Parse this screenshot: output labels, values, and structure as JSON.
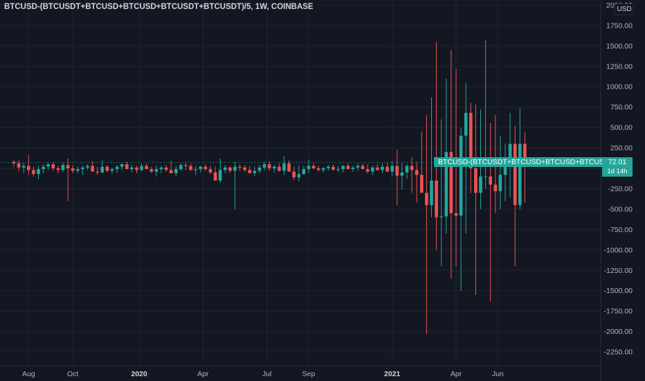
{
  "header": {
    "title": "BTCUSD-(BTCUSDT+BTCUSD+BTCUSD+BTCUSDT+BTCUSDT)/5, 1W, COINBASE",
    "currency": "USD"
  },
  "last_price": {
    "series_label": "BTCUSD-(BTCUSDT+BTCUSD+BTCUSD+BTCUSDT...",
    "value": "72.01",
    "countdown": "1d 14h"
  },
  "colors": {
    "background": "#131722",
    "grid": "#1f2430",
    "up": "#26a69a",
    "down": "#ef5350",
    "text": "#b2b5be"
  },
  "chart_data": {
    "type": "candlestick",
    "interval": "1W",
    "y_axis": {
      "range": [
        -2350,
        2050
      ],
      "ticks": [
        2000,
        1750,
        1500,
        1250,
        1000,
        750,
        500,
        250,
        0,
        -250,
        -500,
        -750,
        -1000,
        -1250,
        -1500,
        -1750,
        -2000,
        -2250
      ],
      "tick_labels": [
        "2000.00",
        "1750.00",
        "1500.00",
        "1250.00",
        "1000.00",
        "750.00",
        "500.00",
        "250.00",
        "0.00",
        "-250.00",
        "-500.00",
        "-750.00",
        "-1000.00",
        "-1250.00",
        "-1500.00",
        "-1750.00",
        "-2000.00",
        "-2250.00"
      ]
    },
    "x_axis": {
      "ticks": [
        {
          "label": "Aug",
          "bar": 3.0,
          "bold": false
        },
        {
          "label": "Oct",
          "bar": 12.0,
          "bold": false
        },
        {
          "label": "2020",
          "bar": 25.5,
          "bold": true
        },
        {
          "label": "Apr",
          "bar": 38.5,
          "bold": false
        },
        {
          "label": "Jul",
          "bar": 51.5,
          "bold": false
        },
        {
          "label": "Sep",
          "bar": 60.0,
          "bold": false
        },
        {
          "label": "2021",
          "bar": 77.0,
          "bold": true
        },
        {
          "label": "Apr",
          "bar": 90.0,
          "bold": false
        },
        {
          "label": "Jun",
          "bar": 98.5,
          "bold": false
        }
      ]
    },
    "last_value": 72.01,
    "candles": [
      {
        "o": 80,
        "h": 100,
        "l": 20,
        "c": 60
      },
      {
        "o": 60,
        "h": 100,
        "l": -40,
        "c": 10
      },
      {
        "o": 10,
        "h": 70,
        "l": -60,
        "c": 30
      },
      {
        "o": 30,
        "h": 160,
        "l": -80,
        "c": -20
      },
      {
        "o": -20,
        "h": 20,
        "l": -100,
        "c": -70
      },
      {
        "o": -70,
        "h": 30,
        "l": -130,
        "c": -10
      },
      {
        "o": -10,
        "h": 50,
        "l": -60,
        "c": 20
      },
      {
        "o": 20,
        "h": 70,
        "l": -20,
        "c": 50
      },
      {
        "o": 50,
        "h": 80,
        "l": -30,
        "c": 0
      },
      {
        "o": 0,
        "h": 30,
        "l": -60,
        "c": -20
      },
      {
        "o": -20,
        "h": 70,
        "l": -40,
        "c": 40
      },
      {
        "o": 40,
        "h": 120,
        "l": -400,
        "c": 0
      },
      {
        "o": 0,
        "h": 40,
        "l": -60,
        "c": -30
      },
      {
        "o": -30,
        "h": 20,
        "l": -60,
        "c": -10
      },
      {
        "o": -10,
        "h": 30,
        "l": -80,
        "c": 10
      },
      {
        "o": 10,
        "h": 50,
        "l": -20,
        "c": 30
      },
      {
        "o": 30,
        "h": 90,
        "l": -10,
        "c": -40
      },
      {
        "o": -40,
        "h": 20,
        "l": -80,
        "c": -50
      },
      {
        "o": -50,
        "h": 100,
        "l": -60,
        "c": 20
      },
      {
        "o": 20,
        "h": 40,
        "l": -50,
        "c": -30
      },
      {
        "o": -30,
        "h": 10,
        "l": -70,
        "c": -10
      },
      {
        "o": -10,
        "h": 40,
        "l": -60,
        "c": 20
      },
      {
        "o": 20,
        "h": 60,
        "l": -20,
        "c": 50
      },
      {
        "o": 50,
        "h": 80,
        "l": 0,
        "c": -10
      },
      {
        "o": -10,
        "h": 40,
        "l": -50,
        "c": 10
      },
      {
        "o": 10,
        "h": 30,
        "l": -60,
        "c": -20
      },
      {
        "o": -20,
        "h": 60,
        "l": -40,
        "c": 30
      },
      {
        "o": 30,
        "h": 60,
        "l": 0,
        "c": -10
      },
      {
        "o": -10,
        "h": 20,
        "l": -60,
        "c": -40
      },
      {
        "o": -40,
        "h": 30,
        "l": -100,
        "c": -10
      },
      {
        "o": -10,
        "h": 30,
        "l": -60,
        "c": 10
      },
      {
        "o": 10,
        "h": 40,
        "l": -40,
        "c": -20
      },
      {
        "o": -20,
        "h": 90,
        "l": -60,
        "c": -60
      },
      {
        "o": -60,
        "h": 30,
        "l": -100,
        "c": -10
      },
      {
        "o": -10,
        "h": 60,
        "l": -30,
        "c": 40
      },
      {
        "o": 40,
        "h": 80,
        "l": -20,
        "c": 30
      },
      {
        "o": 30,
        "h": 60,
        "l": -30,
        "c": -20
      },
      {
        "o": -20,
        "h": 30,
        "l": -80,
        "c": -10
      },
      {
        "o": -10,
        "h": 30,
        "l": -50,
        "c": 20
      },
      {
        "o": 20,
        "h": 50,
        "l": -30,
        "c": -10
      },
      {
        "o": -10,
        "h": 30,
        "l": -70,
        "c": -50
      },
      {
        "o": -50,
        "h": 20,
        "l": -150,
        "c": -150
      },
      {
        "o": -150,
        "h": 120,
        "l": -180,
        "c": -20
      },
      {
        "o": -20,
        "h": 40,
        "l": -60,
        "c": 10
      },
      {
        "o": 10,
        "h": 30,
        "l": -60,
        "c": -30
      },
      {
        "o": -30,
        "h": 80,
        "l": -500,
        "c": 20
      },
      {
        "o": 20,
        "h": 50,
        "l": -30,
        "c": 10
      },
      {
        "o": 10,
        "h": 40,
        "l": -40,
        "c": -20
      },
      {
        "o": -20,
        "h": 30,
        "l": -60,
        "c": -60
      },
      {
        "o": -60,
        "h": 20,
        "l": -100,
        "c": -30
      },
      {
        "o": -30,
        "h": 40,
        "l": -60,
        "c": 10
      },
      {
        "o": 10,
        "h": 80,
        "l": -20,
        "c": 50
      },
      {
        "o": 50,
        "h": 90,
        "l": -30,
        "c": 0
      },
      {
        "o": 0,
        "h": 40,
        "l": -50,
        "c": 20
      },
      {
        "o": 20,
        "h": 60,
        "l": -40,
        "c": -30
      },
      {
        "o": -30,
        "h": 150,
        "l": -80,
        "c": 60
      },
      {
        "o": 60,
        "h": 100,
        "l": -20,
        "c": -40
      },
      {
        "o": -40,
        "h": 20,
        "l": -140,
        "c": -110
      },
      {
        "o": -110,
        "h": 40,
        "l": -160,
        "c": -70
      },
      {
        "o": -70,
        "h": 30,
        "l": -80,
        "c": -10
      },
      {
        "o": -10,
        "h": 110,
        "l": -60,
        "c": 30
      },
      {
        "o": 30,
        "h": 60,
        "l": -10,
        "c": 0
      },
      {
        "o": 0,
        "h": 30,
        "l": -40,
        "c": -20
      },
      {
        "o": -20,
        "h": 20,
        "l": -50,
        "c": 0
      },
      {
        "o": 0,
        "h": 40,
        "l": -30,
        "c": 20
      },
      {
        "o": 20,
        "h": 50,
        "l": -20,
        "c": -20
      },
      {
        "o": -20,
        "h": 30,
        "l": -40,
        "c": -10
      },
      {
        "o": -10,
        "h": 40,
        "l": -50,
        "c": 30
      },
      {
        "o": 30,
        "h": 60,
        "l": 0,
        "c": -10
      },
      {
        "o": -10,
        "h": 30,
        "l": -40,
        "c": 10
      },
      {
        "o": 10,
        "h": 60,
        "l": -30,
        "c": 30
      },
      {
        "o": 30,
        "h": 60,
        "l": -10,
        "c": -10
      },
      {
        "o": -10,
        "h": 50,
        "l": -60,
        "c": -40
      },
      {
        "o": -40,
        "h": 30,
        "l": -80,
        "c": 10
      },
      {
        "o": 10,
        "h": 50,
        "l": -30,
        "c": -20
      },
      {
        "o": -20,
        "h": 60,
        "l": -60,
        "c": 20
      },
      {
        "o": 20,
        "h": 70,
        "l": -40,
        "c": -40
      },
      {
        "o": -40,
        "h": 90,
        "l": -100,
        "c": 30
      },
      {
        "o": 30,
        "h": 230,
        "l": -450,
        "c": -90
      },
      {
        "o": -90,
        "h": 70,
        "l": -260,
        "c": -50
      },
      {
        "o": -50,
        "h": 50,
        "l": -130,
        "c": 30
      },
      {
        "o": 30,
        "h": 140,
        "l": -300,
        "c": -20
      },
      {
        "o": -20,
        "h": 80,
        "l": -420,
        "c": -80
      },
      {
        "o": -80,
        "h": 450,
        "l": -300,
        "c": -300
      },
      {
        "o": -300,
        "h": 650,
        "l": -2030,
        "c": -450
      },
      {
        "o": -450,
        "h": 870,
        "l": -600,
        "c": -150
      },
      {
        "o": -150,
        "h": 1550,
        "l": -1000,
        "c": -600
      },
      {
        "o": -600,
        "h": 600,
        "l": -1200,
        "c": -590
      },
      {
        "o": -590,
        "h": 1100,
        "l": -800,
        "c": 200
      },
      {
        "o": 200,
        "h": 1450,
        "l": -1350,
        "c": -550
      },
      {
        "o": -550,
        "h": 1220,
        "l": -1200,
        "c": -580
      },
      {
        "o": -580,
        "h": 500,
        "l": -1500,
        "c": 400
      },
      {
        "o": 400,
        "h": 1050,
        "l": -800,
        "c": 680
      },
      {
        "o": 680,
        "h": 800,
        "l": -300,
        "c": 0
      },
      {
        "o": 0,
        "h": 780,
        "l": -1550,
        "c": -300
      },
      {
        "o": -300,
        "h": 720,
        "l": -500,
        "c": -100
      },
      {
        "o": -100,
        "h": 1570,
        "l": -250,
        "c": -100
      },
      {
        "o": -100,
        "h": 560,
        "l": -1630,
        "c": -200
      },
      {
        "o": -200,
        "h": 650,
        "l": -550,
        "c": -280
      },
      {
        "o": -280,
        "h": 400,
        "l": -500,
        "c": -80
      },
      {
        "o": -80,
        "h": 300,
        "l": -400,
        "c": 120
      },
      {
        "o": 120,
        "h": 680,
        "l": -350,
        "c": 300
      },
      {
        "o": 300,
        "h": 520,
        "l": -1200,
        "c": -450
      },
      {
        "o": -450,
        "h": 740,
        "l": -500,
        "c": 300
      },
      {
        "o": 300,
        "h": 440,
        "l": -420,
        "c": 72.01
      }
    ]
  }
}
